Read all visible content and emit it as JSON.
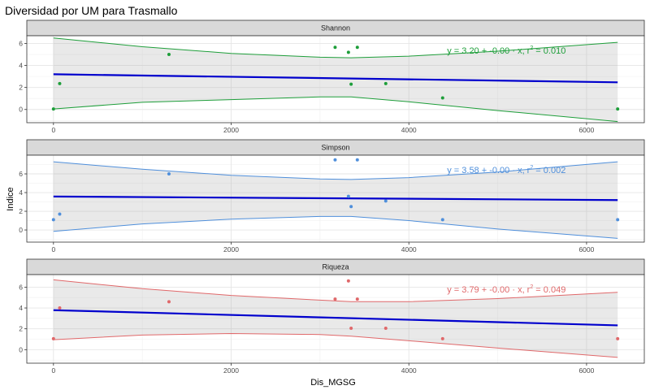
{
  "chart_data": {
    "type": "scatter",
    "title": "Diversidad por UM para Trasmallo",
    "xlabel": "Dis_MGSG",
    "ylabel": "Indice",
    "x_ticks": [
      0,
      2000,
      4000,
      6000
    ],
    "xlim": [
      -300,
      6650
    ],
    "grid": true,
    "fit_color": "#0000CD",
    "panels": [
      {
        "name": "Shannon",
        "color": "#1E9E3A",
        "ylim": [
          -1.2,
          6.7
        ],
        "y_ticks": [
          0,
          2,
          4,
          6
        ],
        "points": [
          {
            "x": 0,
            "y": 0.05
          },
          {
            "x": 70,
            "y": 2.35
          },
          {
            "x": 1300,
            "y": 5.0
          },
          {
            "x": 3170,
            "y": 5.65
          },
          {
            "x": 3320,
            "y": 5.2
          },
          {
            "x": 3350,
            "y": 2.3
          },
          {
            "x": 3420,
            "y": 5.65
          },
          {
            "x": 3740,
            "y": 2.35
          },
          {
            "x": 4380,
            "y": 1.05
          },
          {
            "x": 6350,
            "y": 0.05
          }
        ],
        "fit": {
          "intercept": 3.2,
          "slope": -0.000115
        },
        "band_upper": [
          {
            "x": 0,
            "y": 6.5
          },
          {
            "x": 1000,
            "y": 5.7
          },
          {
            "x": 2000,
            "y": 5.1
          },
          {
            "x": 3000,
            "y": 4.75
          },
          {
            "x": 3350,
            "y": 4.7
          },
          {
            "x": 4000,
            "y": 4.85
          },
          {
            "x": 5000,
            "y": 5.3
          },
          {
            "x": 6350,
            "y": 6.1
          }
        ],
        "band_lower": [
          {
            "x": 0,
            "y": 0.05
          },
          {
            "x": 1000,
            "y": 0.65
          },
          {
            "x": 2000,
            "y": 0.9
          },
          {
            "x": 3000,
            "y": 1.15
          },
          {
            "x": 3350,
            "y": 1.15
          },
          {
            "x": 4000,
            "y": 0.7
          },
          {
            "x": 5000,
            "y": -0.1
          },
          {
            "x": 6350,
            "y": -1.1
          }
        ],
        "equation": {
          "prefix": "y = 3.20 + -0.00 · x,  r",
          "sup": "2",
          "suffix": " = 0.010"
        }
      },
      {
        "name": "Simpson",
        "color": "#4F8FDB",
        "ylim": [
          -1.3,
          8.0
        ],
        "y_ticks": [
          0,
          2,
          4,
          6
        ],
        "points": [
          {
            "x": 0,
            "y": 1.1
          },
          {
            "x": 70,
            "y": 1.7
          },
          {
            "x": 1300,
            "y": 6.0
          },
          {
            "x": 3170,
            "y": 7.5
          },
          {
            "x": 3320,
            "y": 3.6
          },
          {
            "x": 3350,
            "y": 2.5
          },
          {
            "x": 3420,
            "y": 7.5
          },
          {
            "x": 3740,
            "y": 3.1
          },
          {
            "x": 4380,
            "y": 1.1
          },
          {
            "x": 6350,
            "y": 1.1
          }
        ],
        "fit": {
          "intercept": 3.58,
          "slope": -6e-05
        },
        "band_upper": [
          {
            "x": 0,
            "y": 7.3
          },
          {
            "x": 1000,
            "y": 6.5
          },
          {
            "x": 2000,
            "y": 5.85
          },
          {
            "x": 3000,
            "y": 5.45
          },
          {
            "x": 3350,
            "y": 5.4
          },
          {
            "x": 4000,
            "y": 5.6
          },
          {
            "x": 5000,
            "y": 6.2
          },
          {
            "x": 6350,
            "y": 7.3
          }
        ],
        "band_lower": [
          {
            "x": 0,
            "y": -0.15
          },
          {
            "x": 1000,
            "y": 0.65
          },
          {
            "x": 2000,
            "y": 1.15
          },
          {
            "x": 3000,
            "y": 1.45
          },
          {
            "x": 3350,
            "y": 1.45
          },
          {
            "x": 4000,
            "y": 1.0
          },
          {
            "x": 5000,
            "y": 0.1
          },
          {
            "x": 6350,
            "y": -0.9
          }
        ],
        "equation": {
          "prefix": "y = 3.58 + -0.00 · x,  r",
          "sup": "2",
          "suffix": " = 0.002"
        }
      },
      {
        "name": "Riqueza",
        "color": "#E0686A",
        "ylim": [
          -1.3,
          7.2
        ],
        "y_ticks": [
          0,
          2,
          4,
          6
        ],
        "points": [
          {
            "x": 0,
            "y": 1.05
          },
          {
            "x": 70,
            "y": 4.0
          },
          {
            "x": 1300,
            "y": 4.6
          },
          {
            "x": 3170,
            "y": 4.85
          },
          {
            "x": 3320,
            "y": 6.6
          },
          {
            "x": 3350,
            "y": 2.05
          },
          {
            "x": 3420,
            "y": 4.85
          },
          {
            "x": 3740,
            "y": 2.05
          },
          {
            "x": 4380,
            "y": 1.05
          },
          {
            "x": 6350,
            "y": 1.05
          }
        ],
        "fit": {
          "intercept": 3.79,
          "slope": -0.00023
        },
        "band_upper": [
          {
            "x": 0,
            "y": 6.7
          },
          {
            "x": 1000,
            "y": 5.85
          },
          {
            "x": 2000,
            "y": 5.2
          },
          {
            "x": 3000,
            "y": 4.75
          },
          {
            "x": 3350,
            "y": 4.6
          },
          {
            "x": 4000,
            "y": 4.6
          },
          {
            "x": 5000,
            "y": 4.9
          },
          {
            "x": 6350,
            "y": 5.5
          }
        ],
        "band_lower": [
          {
            "x": 0,
            "y": 0.95
          },
          {
            "x": 1000,
            "y": 1.4
          },
          {
            "x": 2000,
            "y": 1.55
          },
          {
            "x": 3000,
            "y": 1.45
          },
          {
            "x": 3350,
            "y": 1.3
          },
          {
            "x": 4000,
            "y": 0.85
          },
          {
            "x": 5000,
            "y": 0.15
          },
          {
            "x": 6350,
            "y": -0.75
          }
        ],
        "equation": {
          "prefix": "y = 3.79 + -0.00 · x,  r",
          "sup": "2",
          "suffix": " = 0.049"
        }
      }
    ]
  }
}
